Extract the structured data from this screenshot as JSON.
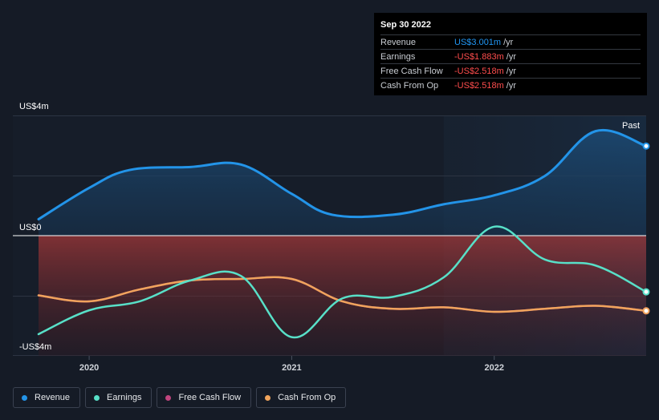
{
  "tooltip": {
    "date": "Sep 30 2022",
    "rows": [
      {
        "label": "Revenue",
        "value": "US$3.001m",
        "unit": "/yr",
        "color": "#2196f3"
      },
      {
        "label": "Earnings",
        "value": "-US$1.883m",
        "unit": "/yr",
        "color": "#ff4d4d"
      },
      {
        "label": "Free Cash Flow",
        "value": "-US$2.518m",
        "unit": "/yr",
        "color": "#ff4d4d"
      },
      {
        "label": "Cash From Op",
        "value": "-US$2.518m",
        "unit": "/yr",
        "color": "#ff4d4d"
      }
    ]
  },
  "legend": [
    {
      "label": "Revenue",
      "color": "#2394e8"
    },
    {
      "label": "Earnings",
      "color": "#58e0c8"
    },
    {
      "label": "Free Cash Flow",
      "color": "#c0457e"
    },
    {
      "label": "Cash From Op",
      "color": "#f0a45c"
    }
  ],
  "chart_data": {
    "type": "line",
    "y_labels": {
      "top": "US$4m",
      "zero": "US$0",
      "bottom": "-US$4m"
    },
    "ylim": [
      -4,
      4
    ],
    "xlim": [
      2019.75,
      2022.75
    ],
    "past_label": "Past",
    "x_ticks": [
      {
        "value": 2020.0,
        "label": "2020"
      },
      {
        "value": 2021.0,
        "label": "2021"
      },
      {
        "value": 2022.0,
        "label": "2022"
      }
    ],
    "past_start": 2021.75,
    "series": [
      {
        "name": "Revenue",
        "color": "#2394e8",
        "points": [
          [
            2019.75,
            0.55
          ],
          [
            2020.0,
            1.6
          ],
          [
            2020.2,
            2.2
          ],
          [
            2020.5,
            2.3
          ],
          [
            2020.75,
            2.38
          ],
          [
            2021.0,
            1.4
          ],
          [
            2021.2,
            0.7
          ],
          [
            2021.5,
            0.7
          ],
          [
            2021.75,
            1.05
          ],
          [
            2022.0,
            1.35
          ],
          [
            2022.25,
            2.0
          ],
          [
            2022.5,
            3.5
          ],
          [
            2022.75,
            3.0
          ]
        ]
      },
      {
        "name": "Earnings",
        "color": "#58e0c8",
        "points": [
          [
            2019.75,
            -3.3
          ],
          [
            2020.0,
            -2.5
          ],
          [
            2020.25,
            -2.2
          ],
          [
            2020.5,
            -1.5
          ],
          [
            2020.75,
            -1.35
          ],
          [
            2021.0,
            -3.4
          ],
          [
            2021.25,
            -2.1
          ],
          [
            2021.5,
            -2.05
          ],
          [
            2021.75,
            -1.4
          ],
          [
            2022.0,
            0.3
          ],
          [
            2022.25,
            -0.8
          ],
          [
            2022.5,
            -1.0
          ],
          [
            2022.75,
            -1.883
          ]
        ]
      },
      {
        "name": "Free Cash Flow",
        "color": "#c0457e",
        "points": [
          [
            2019.75,
            -2.0
          ],
          [
            2020.0,
            -2.2
          ],
          [
            2020.25,
            -1.8
          ],
          [
            2020.5,
            -1.5
          ],
          [
            2020.75,
            -1.45
          ],
          [
            2021.0,
            -1.45
          ],
          [
            2021.25,
            -2.2
          ],
          [
            2021.5,
            -2.45
          ],
          [
            2021.75,
            -2.4
          ],
          [
            2022.0,
            -2.55
          ],
          [
            2022.25,
            -2.45
          ],
          [
            2022.5,
            -2.35
          ],
          [
            2022.75,
            -2.518
          ]
        ]
      },
      {
        "name": "Cash From Op",
        "color": "#f0a45c",
        "points": [
          [
            2019.75,
            -2.0
          ],
          [
            2020.0,
            -2.2
          ],
          [
            2020.25,
            -1.8
          ],
          [
            2020.5,
            -1.5
          ],
          [
            2020.75,
            -1.45
          ],
          [
            2021.0,
            -1.45
          ],
          [
            2021.25,
            -2.2
          ],
          [
            2021.5,
            -2.45
          ],
          [
            2021.75,
            -2.4
          ],
          [
            2022.0,
            -2.55
          ],
          [
            2022.25,
            -2.45
          ],
          [
            2022.5,
            -2.35
          ],
          [
            2022.75,
            -2.518
          ]
        ]
      }
    ]
  }
}
